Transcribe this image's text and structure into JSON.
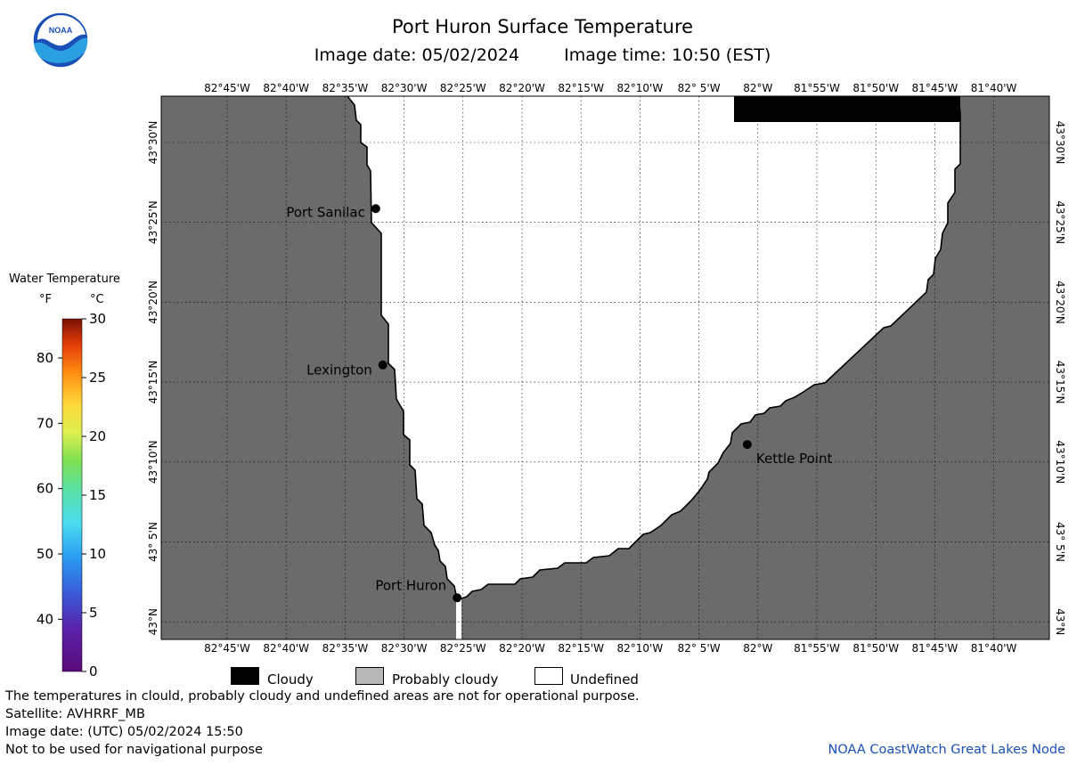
{
  "header": {
    "title": "Port Huron Surface Temperature",
    "image_date": "Image date: 05/02/2024",
    "image_time": "Image time: 10:50 (EST)"
  },
  "logo": {
    "text": "NOAA",
    "colors": [
      "#1a4fb8",
      "#2aa0e0",
      "#ffffff"
    ]
  },
  "colorbar": {
    "title": "Water Temperature",
    "unit_f": "°F",
    "unit_c": "°C",
    "f_ticks": [
      "80",
      "70",
      "60",
      "50",
      "40"
    ],
    "f_values": [
      80,
      70,
      60,
      50,
      40
    ],
    "c_ticks": [
      "30",
      "25",
      "20",
      "15",
      "10",
      "5",
      "0"
    ],
    "c_values": [
      30,
      25,
      20,
      15,
      10,
      5,
      0
    ],
    "c_range": [
      0,
      30
    ]
  },
  "map": {
    "lon_labels": [
      "82°45'W",
      "82°40'W",
      "82°35'W",
      "82°30'W",
      "82°25'W",
      "82°20'W",
      "82°15'W",
      "82°10'W",
      "82° 5'W",
      "82°W",
      "81°55'W",
      "81°50'W",
      "81°45'W",
      "81°40'W"
    ],
    "lon_values": [
      -82.75,
      -82.6667,
      -82.5833,
      -82.5,
      -82.4167,
      -82.3333,
      -82.25,
      -82.1667,
      -82.0833,
      -82.0,
      -81.9167,
      -81.8333,
      -81.75,
      -81.6667
    ],
    "lat_labels": [
      "43°30'N",
      "43°25'N",
      "43°20'N",
      "43°15'N",
      "43°10'N",
      "43° 5'N",
      "43°N"
    ],
    "lat_values": [
      43.5,
      43.4167,
      43.3333,
      43.25,
      43.1667,
      43.0833,
      43.0
    ],
    "cities": [
      {
        "name": "Port Sanilac",
        "lon": -82.54,
        "lat": 43.431
      },
      {
        "name": "Lexington",
        "lon": -82.53,
        "lat": 43.268
      },
      {
        "name": "Kettle Point",
        "lon": -82.015,
        "lat": 43.185
      },
      {
        "name": "Port Huron",
        "lon": -82.425,
        "lat": 43.025
      }
    ],
    "land_color": "#6b6b6b",
    "cloud_color": "#000000"
  },
  "key": {
    "items": [
      {
        "label": "Cloudy",
        "color": "#000000"
      },
      {
        "label": "Probably cloudy",
        "color": "#b8b8b8"
      },
      {
        "label": "Undefined",
        "color": "#ffffff"
      }
    ]
  },
  "footer": {
    "line1": "The temperatures in clould, probably cloudy and undefined areas are not for operational purpose.",
    "line2": "Satellite: AVHRRF_MB",
    "line3": "Image date: (UTC) 05/02/2024  15:50",
    "line4": "Not to be used for navigational purpose",
    "credit": "NOAA CoastWatch Great Lakes Node"
  }
}
